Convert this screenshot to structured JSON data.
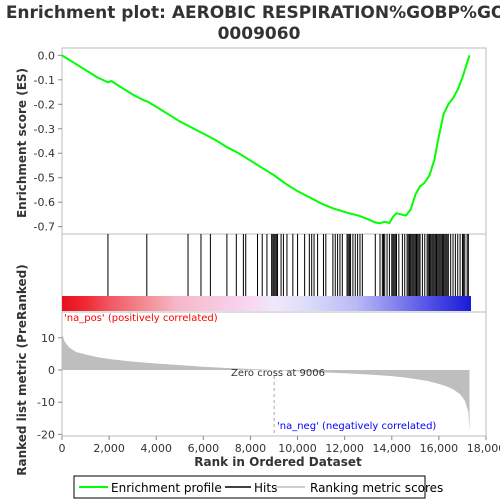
{
  "chart_data": {
    "type": "line",
    "title_line1": "Enrichment plot: AEROBIC RESPIRATION%GOBP%GO:",
    "title_line2": "0009060",
    "xlabel": "Rank in Ordered Dataset",
    "ylabel_top": "Enrichment score (ES)",
    "ylabel_bottom": "Ranked list metric (PreRanked)",
    "xlim": [
      0,
      18000
    ],
    "ylim_es": [
      -0.73,
      0.03
    ],
    "ylim_metric": [
      -20.5,
      18
    ],
    "x_ticks": [
      0,
      2000,
      4000,
      6000,
      8000,
      10000,
      12000,
      14000,
      16000,
      18000
    ],
    "x_tick_labels": [
      "0",
      "2,000",
      "4,000",
      "6,000",
      "8,000",
      "10,000",
      "12,000",
      "14,000",
      "16,000",
      "18,000"
    ],
    "es_ticks": [
      0.0,
      -0.1,
      -0.2,
      -0.3,
      -0.4,
      -0.5,
      -0.6,
      -0.7
    ],
    "es_tick_labels": [
      "0.0",
      "-0.1",
      "-0.2",
      "-0.3",
      "-0.4",
      "-0.5",
      "-0.6",
      "-0.7"
    ],
    "metric_ticks": [
      10,
      0,
      -10,
      -20
    ],
    "metric_tick_labels": [
      "10",
      "0",
      "-10",
      "-20"
    ],
    "enrichment_profile": {
      "name": "Enrichment profile",
      "color": "#00ff00",
      "x": [
        0,
        500,
        1000,
        1500,
        1950,
        2100,
        2500,
        3000,
        3500,
        3650,
        4000,
        4500,
        5000,
        5500,
        6000,
        6500,
        7000,
        7500,
        8000,
        8500,
        9000,
        9500,
        10000,
        10500,
        11000,
        11500,
        12000,
        12300,
        12600,
        13000,
        13300,
        13500,
        13700,
        13900,
        14050,
        14200,
        14400,
        14600,
        14800,
        15000,
        15200,
        15400,
        15600,
        15800,
        16000,
        16200,
        16400,
        16600,
        16800,
        17000,
        17200,
        17300
      ],
      "y": [
        0.0,
        -0.03,
        -0.06,
        -0.09,
        -0.11,
        -0.105,
        -0.13,
        -0.16,
        -0.185,
        -0.19,
        -0.21,
        -0.24,
        -0.27,
        -0.295,
        -0.32,
        -0.345,
        -0.375,
        -0.4,
        -0.43,
        -0.46,
        -0.49,
        -0.525,
        -0.555,
        -0.58,
        -0.605,
        -0.625,
        -0.64,
        -0.648,
        -0.655,
        -0.67,
        -0.683,
        -0.686,
        -0.68,
        -0.685,
        -0.66,
        -0.645,
        -0.65,
        -0.655,
        -0.63,
        -0.57,
        -0.535,
        -0.52,
        -0.49,
        -0.43,
        -0.33,
        -0.24,
        -0.2,
        -0.175,
        -0.14,
        -0.09,
        -0.03,
        0.0
      ]
    },
    "hits": {
      "name": "Hits",
      "positions": [
        1950,
        3600,
        5350,
        5900,
        6300,
        7000,
        7400,
        7700,
        7800,
        8300,
        8500,
        8700,
        8900,
        8950,
        9000,
        9050,
        9100,
        9150,
        9300,
        9400,
        9550,
        9800,
        10000,
        10300,
        10500,
        10600,
        10700,
        10850,
        11100,
        11200,
        11500,
        11600,
        11700,
        11800,
        11900,
        12100,
        12150,
        12200,
        12250,
        12350,
        12450,
        12550,
        12650,
        12750,
        13300,
        13500,
        13600,
        13650,
        13700,
        13800,
        13900,
        14000,
        14050,
        14100,
        14150,
        14200,
        14300,
        14450,
        14550,
        14650,
        14700,
        14750,
        14800,
        14850,
        14900,
        14950,
        15000,
        15050,
        15100,
        15150,
        15200,
        15300,
        15400,
        15500,
        15550,
        15600,
        15650,
        15700,
        15750,
        15800,
        15850,
        15900,
        15950,
        16000,
        16050,
        16100,
        16150,
        16200,
        16250,
        16300,
        16350,
        16400,
        16500,
        16600,
        16700,
        16800,
        16900,
        17000,
        17050,
        17100,
        17200,
        17250
      ]
    },
    "ranking_metric": {
      "name": "Ranking metric scores",
      "color": "#bebebe",
      "x": [
        0,
        100,
        300,
        600,
        1000,
        1500,
        2000,
        3000,
        4000,
        5000,
        6000,
        7000,
        8000,
        8500,
        9006,
        9500,
        10000,
        11000,
        12000,
        13000,
        14000,
        14500,
        15000,
        15500,
        16000,
        16300,
        16600,
        16900,
        17100,
        17250,
        17300
      ],
      "y": [
        11.5,
        9,
        7,
        5.6,
        4.8,
        4.0,
        3.4,
        2.6,
        2.0,
        1.5,
        1.0,
        0.6,
        0.3,
        0.15,
        0,
        -0.2,
        -0.4,
        -0.7,
        -1.0,
        -1.4,
        -1.9,
        -2.3,
        -2.8,
        -3.4,
        -4.3,
        -5.0,
        -6.0,
        -7.5,
        -9.5,
        -13,
        -19
      ]
    },
    "pos_label": "'na_pos' (positively correlated)",
    "neg_label": "'na_neg' (negatively correlated)",
    "zero_cross_label": "Zero cross at 9006",
    "zero_cross": 9006,
    "pos_color": "#ff0000",
    "neg_color": "#0000ff",
    "legend_placement": "bottom",
    "grid": false
  }
}
